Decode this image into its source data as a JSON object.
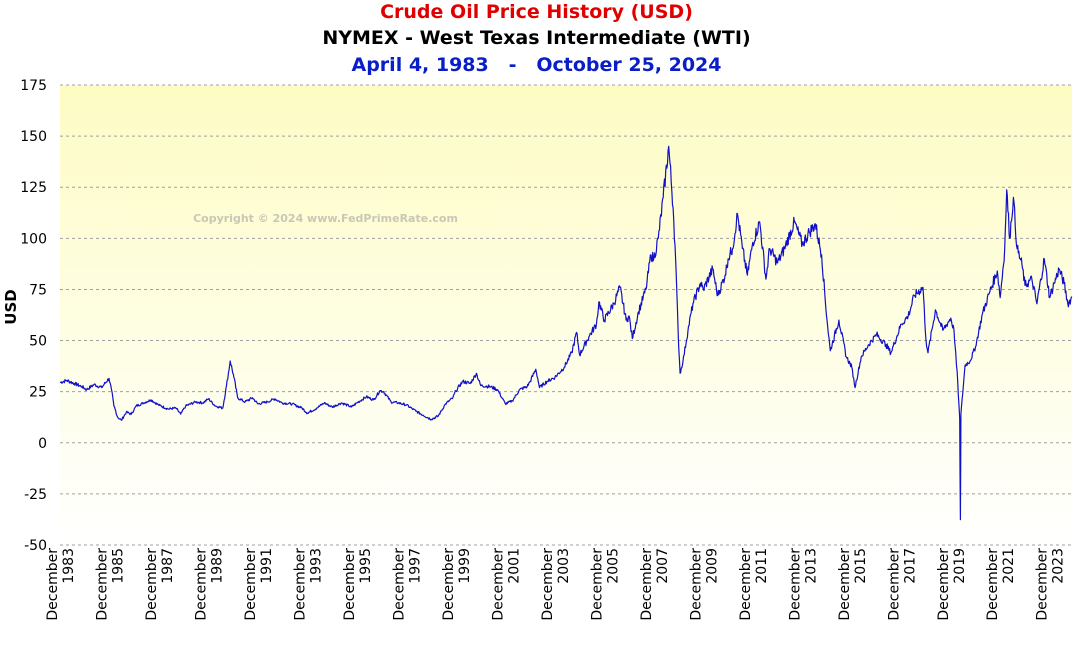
{
  "chart_data": {
    "type": "line",
    "title": "Crude Oil Price History (USD)",
    "subtitle": "NYMEX - West Texas Intermediate (WTI)",
    "date_range": "April 4, 1983   -   October 25, 2024",
    "ylabel": "USD",
    "xlabel": "",
    "ylim": [
      -50,
      175
    ],
    "xlim": [
      1983.92,
      2024.82
    ],
    "y_ticks": [
      175,
      150,
      125,
      100,
      75,
      50,
      25,
      0,
      -25,
      -50
    ],
    "x_ticks": [
      {
        "x": 1983.92,
        "line1": "December",
        "line2": "1983"
      },
      {
        "x": 1985.92,
        "line1": "December",
        "line2": "1985"
      },
      {
        "x": 1987.92,
        "line1": "December",
        "line2": "1987"
      },
      {
        "x": 1989.92,
        "line1": "December",
        "line2": "1989"
      },
      {
        "x": 1991.92,
        "line1": "December",
        "line2": "1991"
      },
      {
        "x": 1993.92,
        "line1": "December",
        "line2": "1993"
      },
      {
        "x": 1995.92,
        "line1": "December",
        "line2": "1995"
      },
      {
        "x": 1997.92,
        "line1": "December",
        "line2": "1997"
      },
      {
        "x": 1999.92,
        "line1": "December",
        "line2": "1999"
      },
      {
        "x": 2001.92,
        "line1": "December",
        "line2": "2001"
      },
      {
        "x": 2003.92,
        "line1": "December",
        "line2": "2003"
      },
      {
        "x": 2005.92,
        "line1": "December",
        "line2": "2005"
      },
      {
        "x": 2007.92,
        "line1": "December",
        "line2": "2007"
      },
      {
        "x": 2009.92,
        "line1": "December",
        "line2": "2009"
      },
      {
        "x": 2011.92,
        "line1": "December",
        "line2": "2011"
      },
      {
        "x": 2013.92,
        "line1": "December",
        "line2": "2013"
      },
      {
        "x": 2015.92,
        "line1": "December",
        "line2": "2015"
      },
      {
        "x": 2017.92,
        "line1": "December",
        "line2": "2017"
      },
      {
        "x": 2019.92,
        "line1": "December",
        "line2": "2019"
      },
      {
        "x": 2021.92,
        "line1": "December",
        "line2": "2021"
      },
      {
        "x": 2023.92,
        "line1": "December",
        "line2": "2023"
      }
    ],
    "grid": true,
    "legend": "none",
    "watermark": "Copyright © 2024 www.FedPrimeRate.com",
    "series": [
      {
        "color": "#1010c8",
        "points": [
          [
            1983.92,
            29.5
          ],
          [
            1984.2,
            30.5
          ],
          [
            1984.5,
            29
          ],
          [
            1984.8,
            27.5
          ],
          [
            1985.0,
            26
          ],
          [
            1985.3,
            28.5
          ],
          [
            1985.6,
            27
          ],
          [
            1985.9,
            31.5
          ],
          [
            1986.0,
            26
          ],
          [
            1986.1,
            18
          ],
          [
            1986.25,
            12.5
          ],
          [
            1986.4,
            11
          ],
          [
            1986.6,
            15
          ],
          [
            1986.8,
            14
          ],
          [
            1987.0,
            18
          ],
          [
            1987.3,
            19.5
          ],
          [
            1987.6,
            21
          ],
          [
            1987.9,
            18.5
          ],
          [
            1988.3,
            16.5
          ],
          [
            1988.6,
            17
          ],
          [
            1988.8,
            14
          ],
          [
            1989.0,
            18
          ],
          [
            1989.4,
            20
          ],
          [
            1989.7,
            19.5
          ],
          [
            1989.92,
            21.5
          ],
          [
            1990.2,
            18
          ],
          [
            1990.5,
            17
          ],
          [
            1990.65,
            28
          ],
          [
            1990.8,
            40
          ],
          [
            1990.95,
            32
          ],
          [
            1991.1,
            22
          ],
          [
            1991.4,
            20
          ],
          [
            1991.7,
            22
          ],
          [
            1991.92,
            19
          ],
          [
            1992.3,
            20
          ],
          [
            1992.6,
            21.5
          ],
          [
            1992.9,
            19.5
          ],
          [
            1993.3,
            19
          ],
          [
            1993.7,
            17
          ],
          [
            1993.92,
            14.5
          ],
          [
            1994.3,
            17
          ],
          [
            1994.6,
            19.5
          ],
          [
            1994.92,
            17.5
          ],
          [
            1995.3,
            19.5
          ],
          [
            1995.7,
            17.5
          ],
          [
            1995.92,
            19.5
          ],
          [
            1996.3,
            22.5
          ],
          [
            1996.6,
            21
          ],
          [
            1996.85,
            25.5
          ],
          [
            1997.0,
            25
          ],
          [
            1997.3,
            20
          ],
          [
            1997.6,
            19.5
          ],
          [
            1997.92,
            18.5
          ],
          [
            1998.3,
            15.5
          ],
          [
            1998.6,
            13.5
          ],
          [
            1998.92,
            11.5
          ],
          [
            1999.2,
            13
          ],
          [
            1999.5,
            19
          ],
          [
            1999.8,
            22
          ],
          [
            1999.92,
            25.5
          ],
          [
            2000.2,
            30
          ],
          [
            2000.5,
            29
          ],
          [
            2000.75,
            34
          ],
          [
            2000.92,
            28
          ],
          [
            2001.3,
            27.5
          ],
          [
            2001.6,
            26
          ],
          [
            2001.92,
            19
          ],
          [
            2002.2,
            20.5
          ],
          [
            2002.5,
            26
          ],
          [
            2002.8,
            27.5
          ],
          [
            2002.92,
            30
          ],
          [
            2003.15,
            36
          ],
          [
            2003.3,
            27
          ],
          [
            2003.6,
            30
          ],
          [
            2003.92,
            32
          ],
          [
            2004.3,
            37
          ],
          [
            2004.6,
            44
          ],
          [
            2004.8,
            54
          ],
          [
            2004.92,
            43
          ],
          [
            2005.3,
            52
          ],
          [
            2005.6,
            58
          ],
          [
            2005.7,
            69
          ],
          [
            2005.92,
            60
          ],
          [
            2006.3,
            68
          ],
          [
            2006.55,
            76
          ],
          [
            2006.8,
            60
          ],
          [
            2006.92,
            62
          ],
          [
            2007.05,
            51
          ],
          [
            2007.3,
            64
          ],
          [
            2007.6,
            75
          ],
          [
            2007.8,
            92
          ],
          [
            2007.92,
            90
          ],
          [
            2008.1,
            100
          ],
          [
            2008.3,
            120
          ],
          [
            2008.52,
            145
          ],
          [
            2008.7,
            115
          ],
          [
            2008.8,
            90
          ],
          [
            2008.9,
            55
          ],
          [
            2008.98,
            34
          ],
          [
            2009.1,
            40
          ],
          [
            2009.3,
            55
          ],
          [
            2009.5,
            68
          ],
          [
            2009.8,
            78
          ],
          [
            2009.92,
            75
          ],
          [
            2010.3,
            85
          ],
          [
            2010.5,
            72
          ],
          [
            2010.8,
            82
          ],
          [
            2010.92,
            90
          ],
          [
            2011.1,
            95
          ],
          [
            2011.3,
            112
          ],
          [
            2011.5,
            95
          ],
          [
            2011.7,
            82
          ],
          [
            2011.92,
            98
          ],
          [
            2012.2,
            108
          ],
          [
            2012.45,
            80
          ],
          [
            2012.6,
            95
          ],
          [
            2012.92,
            88
          ],
          [
            2013.2,
            95
          ],
          [
            2013.6,
            108
          ],
          [
            2013.92,
            97
          ],
          [
            2014.2,
            103
          ],
          [
            2014.45,
            107
          ],
          [
            2014.7,
            92
          ],
          [
            2014.92,
            60
          ],
          [
            2015.05,
            45
          ],
          [
            2015.4,
            60
          ],
          [
            2015.7,
            42
          ],
          [
            2015.92,
            37
          ],
          [
            2016.05,
            27
          ],
          [
            2016.3,
            42
          ],
          [
            2016.6,
            48
          ],
          [
            2016.92,
            53
          ],
          [
            2017.3,
            48
          ],
          [
            2017.5,
            44
          ],
          [
            2017.92,
            58
          ],
          [
            2018.2,
            62
          ],
          [
            2018.45,
            72
          ],
          [
            2018.8,
            76
          ],
          [
            2018.92,
            50
          ],
          [
            2019.0,
            44
          ],
          [
            2019.3,
            65
          ],
          [
            2019.6,
            55
          ],
          [
            2019.92,
            61
          ],
          [
            2020.05,
            55
          ],
          [
            2020.2,
            30
          ],
          [
            2020.28,
            12
          ],
          [
            2020.31,
            -37.6
          ],
          [
            2020.33,
            14
          ],
          [
            2020.5,
            38
          ],
          [
            2020.7,
            40
          ],
          [
            2020.92,
            47
          ],
          [
            2021.2,
            63
          ],
          [
            2021.5,
            74
          ],
          [
            2021.8,
            84
          ],
          [
            2021.92,
            71
          ],
          [
            2022.1,
            95
          ],
          [
            2022.18,
            123.7
          ],
          [
            2022.3,
            100
          ],
          [
            2022.45,
            120
          ],
          [
            2022.6,
            95
          ],
          [
            2022.8,
            87
          ],
          [
            2022.92,
            77
          ],
          [
            2023.2,
            80
          ],
          [
            2023.4,
            68
          ],
          [
            2023.7,
            90
          ],
          [
            2023.92,
            71
          ],
          [
            2024.1,
            78
          ],
          [
            2024.3,
            85
          ],
          [
            2024.5,
            78
          ],
          [
            2024.65,
            68
          ],
          [
            2024.82,
            71
          ]
        ]
      }
    ]
  }
}
